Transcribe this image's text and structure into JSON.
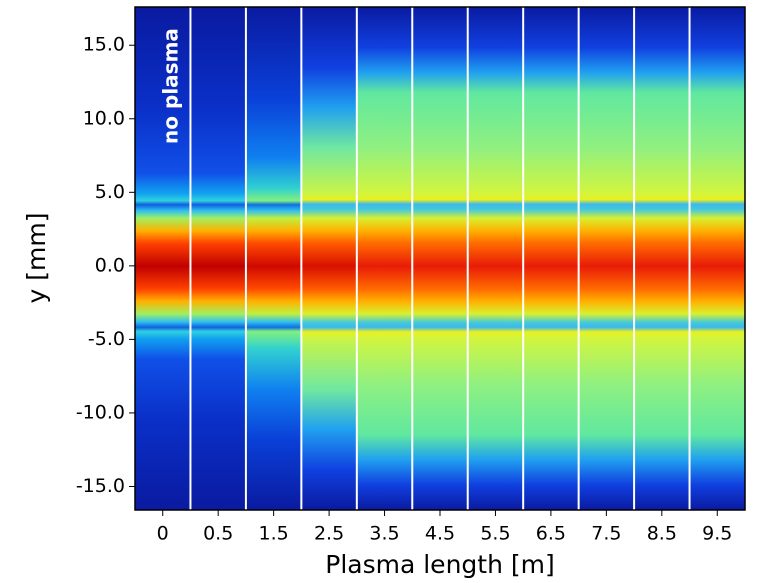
{
  "chart_data": {
    "type": "image-panels",
    "annotation": "no plasma",
    "x_label": "Plasma length [m]",
    "y_label": "y [mm]",
    "categories": [
      "0",
      "0.5",
      "1.5",
      "2.5",
      "3.5",
      "4.5",
      "5.5",
      "6.5",
      "7.5",
      "8.5",
      "9.5"
    ],
    "ylim": [
      -16.6,
      17.6
    ],
    "yticks": [
      {
        "value": -15,
        "label": "-15.0"
      },
      {
        "value": -10,
        "label": "-10.0"
      },
      {
        "value": -5,
        "label": "-5.0"
      },
      {
        "value": 0,
        "label": "0.0"
      },
      {
        "value": 5,
        "label": "5.0"
      },
      {
        "value": 10,
        "label": "10.0"
      },
      {
        "value": 15,
        "label": "15.0"
      }
    ]
  }
}
